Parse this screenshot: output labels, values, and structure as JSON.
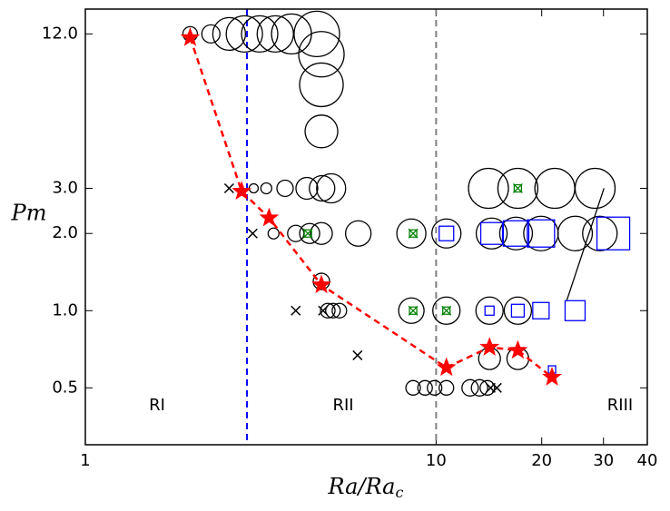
{
  "chart_data": {
    "type": "scatter",
    "x_label": "Ra/Ra",
    "x_label_sub": "c",
    "y_label": "Pm",
    "xscale": "log",
    "yscale": "log",
    "xlim": [
      1,
      40
    ],
    "ylim": [
      0.3,
      15
    ],
    "xticks": [
      1,
      10,
      20,
      30,
      40
    ],
    "yticks": [
      0.5,
      {
        "value": 1,
        "label": "1.0"
      },
      {
        "value": 2,
        "label": "2.0"
      },
      {
        "value": 3,
        "label": "3.0"
      },
      {
        "value": 12,
        "label": "12.0"
      }
    ],
    "region_labels": [
      "RI",
      "RII",
      "RIII"
    ],
    "vlines": [
      {
        "x": 2.89,
        "color": "#0000ff"
      },
      {
        "x": 10,
        "color": "#808080"
      }
    ],
    "annotation_line": {
      "x": [
        30.1,
        23.6
      ],
      "y": [
        3,
        1.1
      ],
      "color": "#000000"
    },
    "series": [
      {
        "marker": "circle",
        "color": "#000000",
        "x": [
          1.99,
          2.28,
          2.57,
          2.84,
          3.14,
          3.48,
          3.87,
          4.57,
          4.71,
          4.71,
          4.71,
          3.02,
          3.28,
          3.71,
          4.28,
          4.73,
          5.02,
          14.1,
          17.1,
          21.8,
          28.4,
          3.44,
          3.98,
          4.36,
          4.71,
          6.0,
          8.5,
          10.7,
          14.4,
          16.9,
          19.9,
          24.9,
          29.3,
          4.71,
          4.91,
          5.08,
          5.3,
          8.5,
          10.7,
          14.2,
          17.1,
          14.2,
          17.1,
          8.6,
          9.3,
          9.9,
          10.7,
          12.5,
          13.3,
          14.0
        ],
        "y": [
          12,
          12,
          12,
          12,
          12,
          12,
          12,
          12,
          10,
          7.6,
          5.0,
          3,
          3,
          3,
          3,
          3,
          3,
          3,
          3,
          3,
          3,
          2,
          2,
          2,
          2,
          2,
          2,
          2,
          2,
          2,
          2,
          2,
          2,
          1.3,
          1,
          1,
          1,
          1,
          1,
          1,
          1,
          0.65,
          0.65,
          0.5,
          0.5,
          0.5,
          0.5,
          0.5,
          0.5,
          0.5
        ],
        "sizes": [
          8,
          10,
          18,
          20,
          20,
          20,
          22,
          25,
          25,
          24,
          18,
          5,
          6,
          9,
          12,
          14,
          16,
          22,
          22,
          22,
          22,
          6,
          9,
          11,
          12,
          14,
          16,
          16,
          17,
          18,
          19,
          19,
          19,
          9,
          8,
          8,
          8,
          14,
          15,
          15,
          15,
          12,
          12,
          8,
          8,
          8,
          8,
          9,
          9,
          8
        ]
      },
      {
        "marker": "cross",
        "color": "#000000",
        "x": [
          2.57,
          3.0,
          3.98,
          4.76,
          5.97,
          14.3,
          14.9
        ],
        "y": [
          3,
          2,
          1,
          1,
          0.67,
          0.5,
          0.5
        ]
      },
      {
        "marker": "boxcross",
        "color": "#008000",
        "x": [
          4.31,
          8.6,
          17.1,
          8.6,
          10.7
        ],
        "y": [
          2,
          2,
          3,
          1,
          1
        ]
      },
      {
        "marker": "square",
        "color": "#0000ff",
        "x": [
          10.7,
          14.4,
          16.9,
          19.9,
          32.0,
          14.2,
          17.1,
          19.9,
          24.9,
          21.4
        ],
        "y": [
          2,
          2,
          2,
          2,
          2,
          1,
          1,
          1,
          1,
          0.59
        ],
        "sizes": [
          8,
          12,
          14,
          15,
          18,
          5,
          7,
          9,
          11,
          4
        ]
      },
      {
        "marker": "star",
        "color": "#ff0000",
        "line": "dashed",
        "x": [
          1.99,
          2.79,
          3.34,
          4.71,
          10.7,
          14.2,
          17.1,
          21.4
        ],
        "y": [
          11.6,
          2.92,
          2.3,
          1.26,
          0.6,
          0.72,
          0.7,
          0.55
        ]
      }
    ]
  }
}
